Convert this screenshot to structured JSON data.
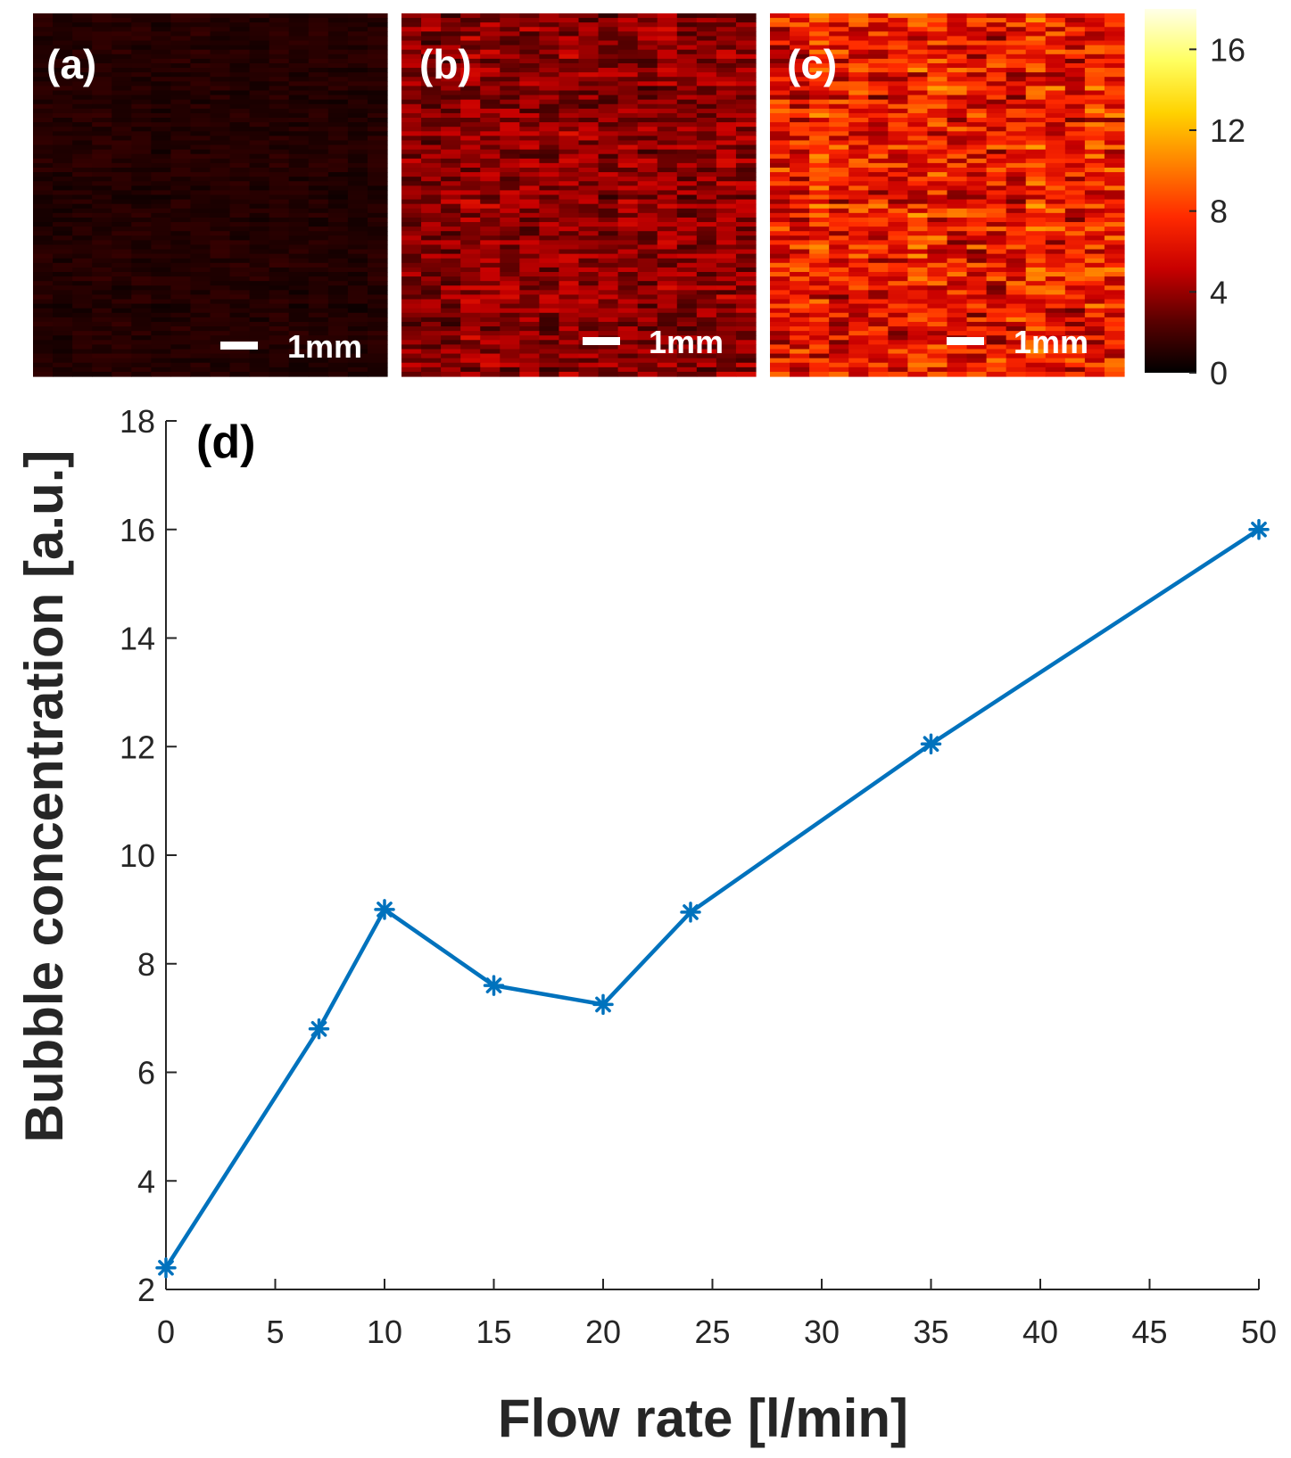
{
  "heatmaps": [
    {
      "label": "(a)",
      "scalebar": "1mm",
      "intensity": 0.1
    },
    {
      "label": "(b)",
      "scalebar": "1mm",
      "intensity": 0.38
    },
    {
      "label": "(c)",
      "scalebar": "1mm",
      "intensity": 0.7
    }
  ],
  "colorbar": {
    "ticks": [
      "0",
      "4",
      "8",
      "12",
      "16"
    ],
    "range": [
      0,
      18
    ],
    "colormap": [
      "#000000",
      "#5a0000",
      "#c80000",
      "#ff2a00",
      "#ff8000",
      "#ffd200",
      "#ffff60",
      "#ffffe8"
    ]
  },
  "chart_data": {
    "type": "line",
    "panel_label": "(d)",
    "xlabel": "Flow rate [l/min]",
    "ylabel": "Bubble concentration [a.u.]",
    "xlim": [
      0,
      50
    ],
    "ylim": [
      2,
      18
    ],
    "xticks": [
      "0",
      "5",
      "10",
      "15",
      "20",
      "25",
      "30",
      "35",
      "40",
      "45",
      "50"
    ],
    "yticks": [
      "2",
      "4",
      "6",
      "8",
      "10",
      "12",
      "14",
      "16",
      "18"
    ],
    "grid": false,
    "marker": "asterisk",
    "color": "#0072BD",
    "x": [
      0,
      7,
      10,
      15,
      20,
      24,
      35,
      50
    ],
    "y": [
      2.4,
      6.8,
      9.0,
      7.6,
      7.25,
      8.95,
      12.05,
      16.0
    ]
  }
}
